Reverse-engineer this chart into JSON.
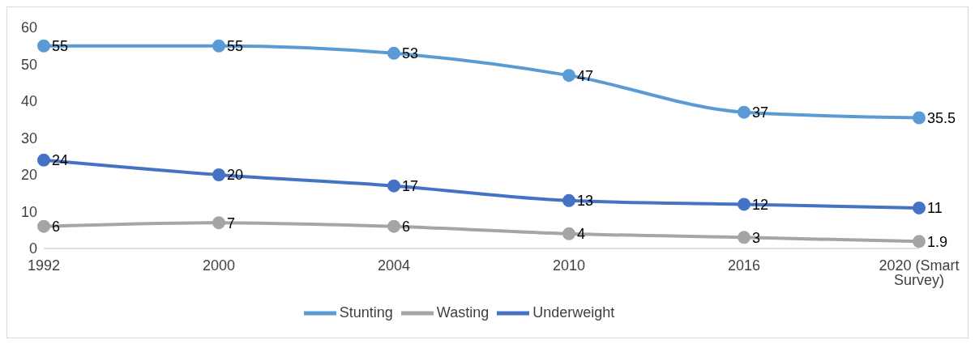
{
  "chart_data": {
    "type": "line",
    "categories": [
      "1992",
      "2000",
      "2004",
      "2010",
      "2016",
      "2020 (Smart Survey)"
    ],
    "series": [
      {
        "name": "Stunting",
        "color": "#5b9bd5",
        "values": [
          55,
          55,
          53,
          47,
          37,
          35.5
        ]
      },
      {
        "name": "Wasting",
        "color": "#a5a5a5",
        "values": [
          6,
          7,
          6,
          4,
          3,
          1.9
        ]
      },
      {
        "name": "Underweight",
        "color": "#4472c4",
        "values": [
          24,
          20,
          17,
          13,
          12,
          11
        ]
      }
    ],
    "ylim": [
      0,
      60
    ],
    "yticks": [
      0,
      10,
      20,
      30,
      40,
      50,
      60
    ],
    "grid": false,
    "legend": "bottom",
    "marker": "circle",
    "line_style": "solid",
    "data_labels": true
  }
}
